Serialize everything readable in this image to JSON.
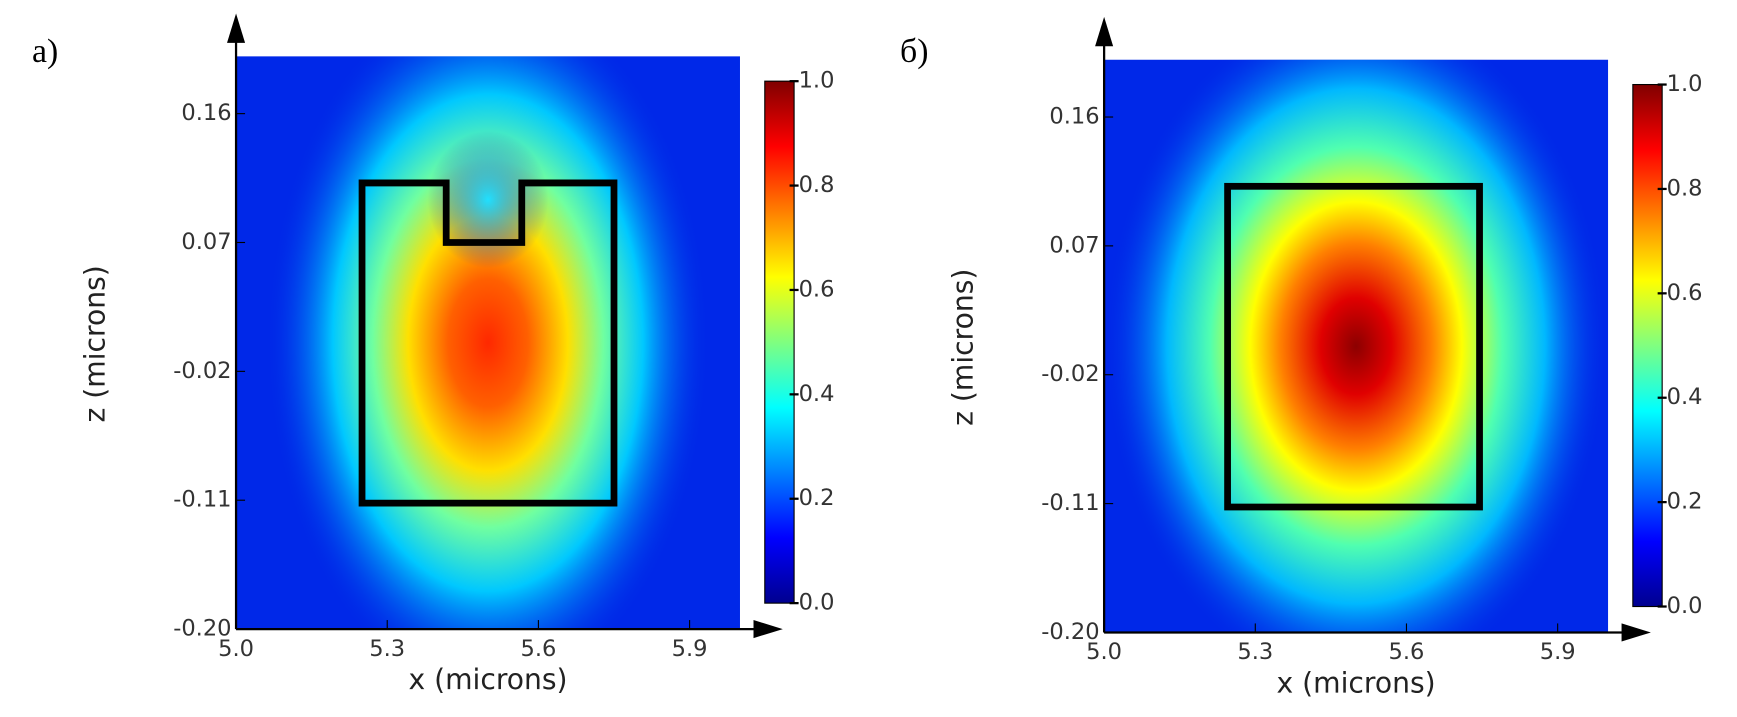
{
  "chart_data": [
    {
      "type": "heatmap",
      "panel_label": "а)",
      "xlabel": "x (microns)",
      "ylabel": "z (microns)",
      "xlim": [
        5.0,
        6.0
      ],
      "xticks": [
        {
          "value": 5.0,
          "label": "5.0"
        },
        5.3,
        5.6,
        5.9
      ],
      "ylim": [
        -0.2,
        0.2
      ],
      "yticks": [
        0.16,
        0.07,
        -0.02,
        -0.11,
        {
          "value": -0.2,
          "label": "-0.20"
        }
      ],
      "clim": [
        0,
        1
      ],
      "cticks": [
        {
          "value": 1,
          "label": "1.0"
        },
        0.8,
        0.6,
        0.4,
        0.2,
        {
          "value": 0,
          "label": "0.0"
        }
      ]
    },
    {
      "type": "heatmap",
      "panel_label": "б)",
      "xlabel": "x (microns)",
      "ylabel": "z (microns)",
      "xlim": [
        5.0,
        6.0
      ],
      "xticks": [
        {
          "value": 5.0,
          "label": "5.0"
        },
        5.3,
        5.6,
        5.9
      ],
      "ylim": [
        -0.2,
        0.2
      ],
      "yticks": [
        0.16,
        0.07,
        -0.02,
        -0.11,
        {
          "value": -0.2,
          "label": "-0.20"
        }
      ],
      "clim": [
        0,
        1
      ],
      "cticks": [
        {
          "value": 1,
          "label": "1.0"
        },
        0.8,
        0.6,
        0.4,
        0.2,
        {
          "value": 0,
          "label": "0.0"
        }
      ]
    }
  ]
}
